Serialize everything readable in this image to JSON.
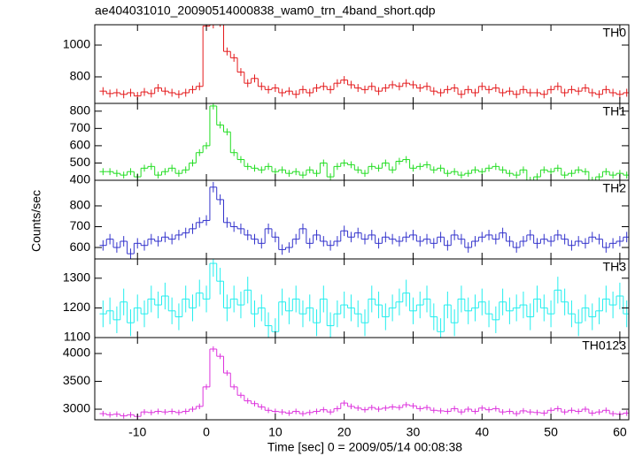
{
  "title": "ae404031010_20090514000838_wam0_trn_4band_short.qdp",
  "xlabel": "Time [sec] 0 = 2009/05/14 00:08:38",
  "ylabel": "Counts/sec",
  "x": [
    -15,
    -14,
    -13,
    -12,
    -11,
    -10,
    -9,
    -8,
    -7,
    -6,
    -5,
    -4,
    -3,
    -2,
    -1,
    0,
    1,
    2,
    3,
    4,
    5,
    6,
    7,
    8,
    9,
    10,
    11,
    12,
    13,
    14,
    15,
    16,
    17,
    18,
    19,
    20,
    21,
    22,
    23,
    24,
    25,
    26,
    27,
    28,
    29,
    30,
    31,
    32,
    33,
    34,
    35,
    36,
    37,
    38,
    39,
    40,
    41,
    42,
    43,
    44,
    45,
    46,
    47,
    48,
    49,
    50,
    51,
    52,
    53,
    54,
    55,
    56,
    57,
    58,
    59,
    60,
    61
  ],
  "xlim": [
    -16.2,
    61.3
  ],
  "xticks": [
    -10,
    0,
    10,
    20,
    30,
    40,
    50,
    60
  ],
  "chart_data": [
    {
      "type": "step",
      "label": "TH0",
      "color": "#e41a1c",
      "error": 25,
      "ylim": [
        633,
        1128
      ],
      "yticks": [
        800,
        1000
      ],
      "values": [
        710,
        695,
        700,
        690,
        700,
        680,
        705,
        695,
        730,
        710,
        700,
        690,
        700,
        720,
        740,
        1120,
        1130,
        1140,
        960,
        920,
        830,
        760,
        790,
        740,
        720,
        730,
        700,
        710,
        690,
        720,
        700,
        730,
        740,
        720,
        760,
        780,
        750,
        730,
        720,
        740,
        710,
        730,
        750,
        740,
        760,
        750,
        730,
        740,
        710,
        700,
        720,
        730,
        690,
        720,
        700,
        740,
        720,
        730,
        700,
        710,
        690,
        720,
        700,
        700,
        690,
        720,
        740,
        700,
        720,
        710,
        730,
        700,
        690,
        720,
        700,
        690,
        700
      ]
    },
    {
      "type": "step",
      "label": "TH1",
      "color": "#22dd22",
      "error": 20,
      "ylim": [
        400,
        845
      ],
      "yticks": [
        400,
        500,
        600,
        700,
        800
      ],
      "values": [
        450,
        450,
        440,
        430,
        450,
        420,
        470,
        480,
        430,
        450,
        470,
        440,
        460,
        500,
        560,
        600,
        830,
        720,
        680,
        560,
        520,
        480,
        470,
        460,
        480,
        450,
        460,
        440,
        450,
        430,
        460,
        440,
        500,
        420,
        480,
        500,
        490,
        460,
        440,
        480,
        470,
        500,
        460,
        510,
        520,
        470,
        480,
        490,
        460,
        470,
        440,
        450,
        430,
        440,
        460,
        450,
        470,
        480,
        460,
        440,
        430,
        460,
        400,
        420,
        460,
        450,
        470,
        430,
        440,
        460,
        450,
        400,
        420,
        450,
        430,
        440,
        430
      ]
    },
    {
      "type": "step",
      "label": "TH2",
      "color": "#3333cc",
      "error": 25,
      "ylim": [
        545,
        923
      ],
      "yticks": [
        600,
        700,
        800
      ],
      "values": [
        610,
        640,
        600,
        630,
        570,
        620,
        610,
        640,
        630,
        650,
        640,
        660,
        670,
        690,
        720,
        730,
        890,
        830,
        720,
        700,
        690,
        660,
        640,
        620,
        690,
        650,
        590,
        600,
        640,
        690,
        620,
        660,
        630,
        610,
        630,
        680,
        650,
        670,
        640,
        660,
        620,
        650,
        640,
        630,
        650,
        660,
        630,
        640,
        620,
        650,
        610,
        660,
        640,
        600,
        630,
        650,
        660,
        640,
        670,
        630,
        600,
        630,
        660,
        620,
        640,
        630,
        660,
        640,
        610,
        630,
        620,
        650,
        640,
        600,
        620,
        630,
        650
      ]
    },
    {
      "type": "step",
      "label": "TH3",
      "color": "#22eeee",
      "error": 45,
      "ylim": [
        1100,
        1365
      ],
      "yticks": [
        1100,
        1200,
        1300
      ],
      "values": [
        1180,
        1190,
        1160,
        1220,
        1150,
        1200,
        1180,
        1230,
        1210,
        1240,
        1190,
        1170,
        1230,
        1200,
        1250,
        1230,
        1350,
        1290,
        1200,
        1230,
        1210,
        1260,
        1180,
        1200,
        1140,
        1120,
        1220,
        1190,
        1230,
        1180,
        1200,
        1150,
        1230,
        1140,
        1180,
        1210,
        1200,
        1180,
        1150,
        1230,
        1210,
        1170,
        1200,
        1220,
        1250,
        1190,
        1210,
        1230,
        1170,
        1120,
        1210,
        1150,
        1230,
        1190,
        1200,
        1220,
        1180,
        1160,
        1220,
        1190,
        1200,
        1210,
        1170,
        1230,
        1200,
        1180,
        1260,
        1220,
        1180,
        1150,
        1200,
        1170,
        1190,
        1230,
        1210,
        1240,
        1180
      ]
    },
    {
      "type": "step",
      "label": "TH0123",
      "color": "#dd33dd",
      "error": 50,
      "ylim": [
        2810,
        4286
      ],
      "yticks": [
        3000,
        3500,
        4000
      ],
      "values": [
        2920,
        2900,
        2910,
        2880,
        2900,
        2870,
        2950,
        2940,
        2960,
        2950,
        2960,
        2940,
        2960,
        3000,
        3050,
        3400,
        4080,
        3950,
        3650,
        3400,
        3250,
        3150,
        3100,
        3040,
        2980,
        2960,
        2950,
        2930,
        2960,
        2920,
        2940,
        2960,
        2990,
        2950,
        3010,
        3110,
        3050,
        3020,
        2990,
        3030,
        3000,
        3020,
        3040,
        3030,
        3080,
        3060,
        3010,
        3030,
        2980,
        2970,
        2960,
        3010,
        2950,
        3000,
        2960,
        3020,
        2990,
        3010,
        2950,
        2960,
        2920,
        2970,
        2950,
        2940,
        2930,
        2980,
        3010,
        2950,
        2980,
        2960,
        3000,
        2930,
        2950,
        2980,
        2920,
        2910,
        2930
      ]
    }
  ]
}
